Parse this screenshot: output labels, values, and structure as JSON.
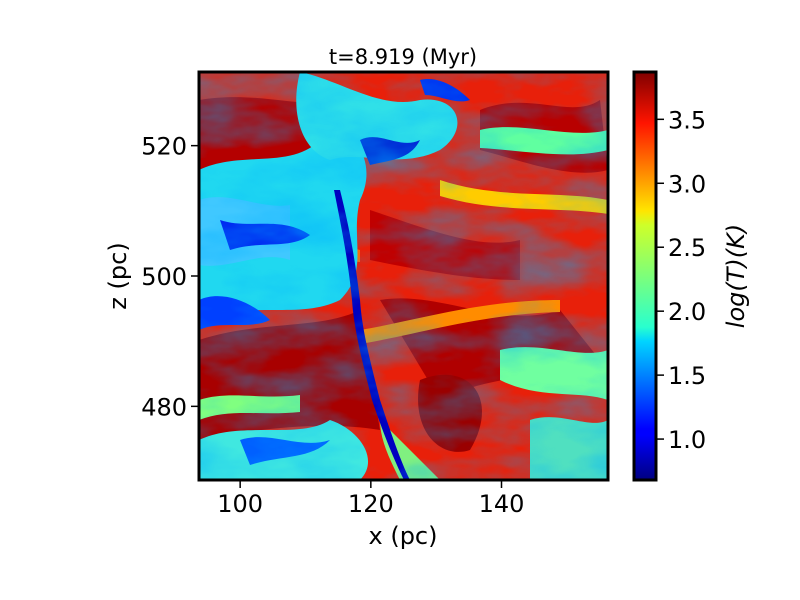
{
  "chart_data": {
    "type": "heatmap",
    "title": "t=8.919 (Myr)",
    "xlabel": "x (pc)",
    "ylabel": "z (pc)",
    "xlim": [
      93.7,
      156.3
    ],
    "ylim": [
      468.7,
      531.3
    ],
    "xticks": [
      {
        "value": 100,
        "label": "100"
      },
      {
        "value": 120,
        "label": "120"
      },
      {
        "value": 140,
        "label": "140"
      }
    ],
    "yticks": [
      {
        "value": 480,
        "label": "480"
      },
      {
        "value": 500,
        "label": "500"
      },
      {
        "value": 520,
        "label": "520"
      }
    ],
    "colorbar": {
      "label": "log(T)(K)",
      "range": [
        0.68,
        3.87
      ],
      "ticks": [
        {
          "value": 1.0,
          "label": "1.0"
        },
        {
          "value": 1.5,
          "label": "1.5"
        },
        {
          "value": 2.0,
          "label": "2.0"
        },
        {
          "value": 2.5,
          "label": "2.5"
        },
        {
          "value": 3.0,
          "label": "3.0"
        },
        {
          "value": 3.5,
          "label": "3.5"
        }
      ],
      "colormap": "jet"
    },
    "grid": false,
    "description_colors": {
      "hot": "#a00000",
      "warm": "#ff3c00",
      "mid": "#80ff80",
      "cool": "#00c8ff",
      "cold": "#0000c8"
    }
  }
}
